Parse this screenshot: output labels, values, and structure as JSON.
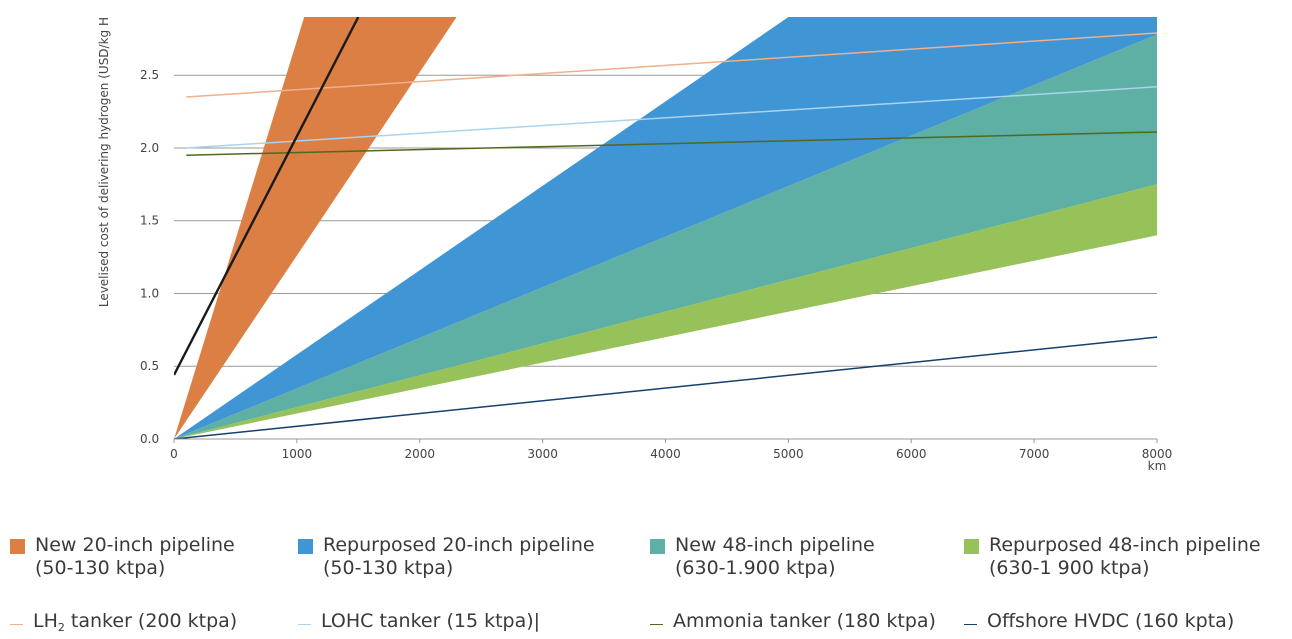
{
  "chart_data": {
    "type": "area",
    "ylabel": "Levelised cost of delivering hydrogen (USD/kg H",
    "x_unit_label": "km",
    "xlim": [
      0,
      8000
    ],
    "ylim": [
      0,
      2.9
    ],
    "x_ticks": [
      0,
      1000,
      2000,
      3000,
      4000,
      5000,
      6000,
      7000,
      8000
    ],
    "y_ticks": [
      0.0,
      0.5,
      1.0,
      1.5,
      2.0,
      2.5
    ],
    "x_tick_labels": [
      "0",
      "1000",
      "2000",
      "3000",
      "4000",
      "5000",
      "6000",
      "7000",
      "8000"
    ],
    "y_tick_labels": [
      "0.0",
      "0.5",
      "1.0",
      "1.5",
      "2.0",
      "2.5"
    ],
    "grid": "horizontal",
    "bands": [
      {
        "name_line1": "New 20-inch pipeline",
        "name_line2": "(50-130 ktpa)",
        "color": "#db7f45",
        "lower": [
          [
            0,
            0
          ],
          [
            2300,
            2.9
          ]
        ],
        "upper": [
          [
            0,
            0
          ],
          [
            1060,
            2.9
          ]
        ]
      },
      {
        "name_line1": "Repurposed 20-inch pipeline",
        "name_line2": "(50-130 ktpa)",
        "color": "#4095d4",
        "lower": [
          [
            0,
            0
          ],
          [
            8000,
            2.78
          ]
        ],
        "upper": [
          [
            0,
            0
          ],
          [
            5000,
            2.9
          ],
          [
            8000,
            2.9
          ]
        ]
      },
      {
        "name_line1": "New 48-inch pipeline",
        "name_line2": "(630-1.900 ktpa)",
        "color": "#5eafa4",
        "lower": [
          [
            0,
            0
          ],
          [
            8000,
            1.75
          ]
        ],
        "upper": [
          [
            0,
            0
          ],
          [
            8000,
            2.78
          ]
        ]
      },
      {
        "name_line1": "Repurposed 48-inch pipeline",
        "name_line2": "(630-1 900 ktpa)",
        "color": "#97c25a",
        "lower": [
          [
            0,
            0
          ],
          [
            8000,
            1.4
          ]
        ],
        "upper": [
          [
            0,
            0
          ],
          [
            8000,
            1.75
          ]
        ]
      }
    ],
    "lines": [
      {
        "name": "LH₂ tanker (200 ktpa)",
        "name_prefix": "LH",
        "name_sub": "2",
        "name_suffix": " tanker (200 ktpa)",
        "color": "#f0b08a",
        "points": [
          [
            100,
            2.35
          ],
          [
            8000,
            2.79
          ]
        ]
      },
      {
        "name": "LOHC tanker (15 ktpa)|",
        "color": "#a9d3ee",
        "points": [
          [
            100,
            2.0
          ],
          [
            8000,
            2.42
          ]
        ]
      },
      {
        "name": "Ammonia tanker (180 ktpa)",
        "color": "#4d6a1e",
        "points": [
          [
            100,
            1.95
          ],
          [
            8000,
            2.11
          ]
        ]
      },
      {
        "name": "Offshore HVDC (160 kpta)",
        "color": "#173f6c",
        "points": [
          [
            0,
            0
          ],
          [
            8000,
            0.7
          ]
        ]
      },
      {
        "color": "#1a1a1a",
        "points": [
          [
            0,
            0.44
          ],
          [
            1500,
            2.9
          ]
        ]
      }
    ]
  }
}
